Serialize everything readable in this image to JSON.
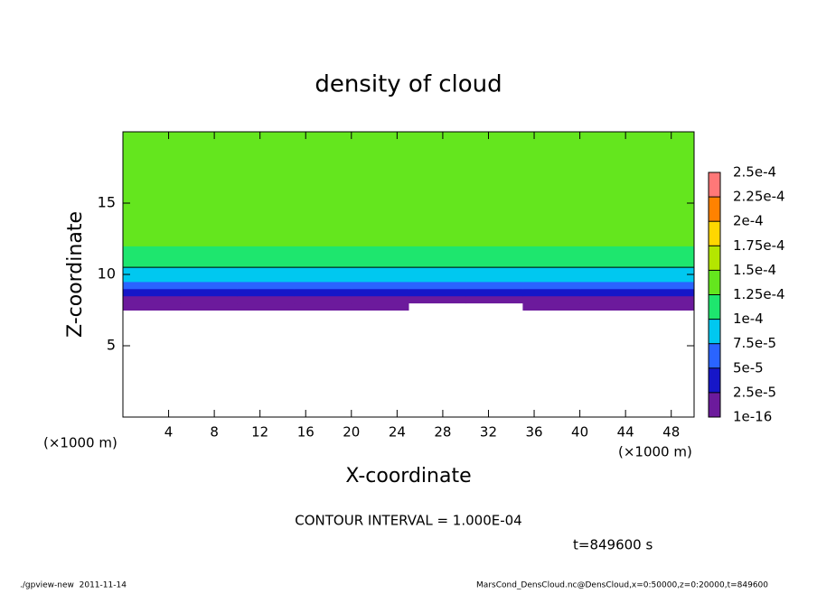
{
  "chart_data": {
    "type": "contour",
    "title": "density of cloud",
    "xlabel": "X-coordinate",
    "ylabel": "Z-coordinate",
    "x_unit": "(×1000 m)",
    "contour_interval_label": "CONTOUR INTERVAL = 1.000E-04",
    "contour_levels": [
      0.0001
    ],
    "contour_color": "#000000",
    "time_label": "t=849600 s",
    "footer_left": "./gpview-new  2011-11-14",
    "footer_right": "MarsCond_DensCloud.nc@DensCloud,x=0:50000,z=0:20000,t=849600",
    "xlim": [
      0,
      50
    ],
    "ylim": [
      0,
      20
    ],
    "xticks": [
      4,
      8,
      12,
      16,
      20,
      24,
      28,
      32,
      36,
      40,
      44,
      48
    ],
    "yticks": [
      5,
      10,
      15
    ],
    "x_edges": [
      0,
      5,
      10,
      15,
      20,
      25,
      30,
      35,
      40,
      45,
      50
    ],
    "z_edges": [
      7.5,
      8,
      8.5,
      9,
      9.5,
      10,
      10.5,
      12,
      20
    ],
    "values": [
      [
        1e-05,
        1e-05,
        1e-05,
        1e-05,
        1e-05,
        null,
        null,
        1e-05,
        1e-05,
        1e-05
      ],
      [
        2e-05,
        2e-05,
        2e-05,
        2e-05,
        2e-05,
        2e-05,
        2e-05,
        2e-05,
        2e-05,
        2e-05
      ],
      [
        3.5e-05,
        3.5e-05,
        3.5e-05,
        3.5e-05,
        3.5e-05,
        3.5e-05,
        3.5e-05,
        3.5e-05,
        3.5e-05,
        3.5e-05
      ],
      [
        6e-05,
        6e-05,
        6e-05,
        6e-05,
        6e-05,
        6e-05,
        6e-05,
        6e-05,
        6e-05,
        6e-05
      ],
      [
        8.5e-05,
        8.5e-05,
        8e-05,
        8.5e-05,
        8e-05,
        8.5e-05,
        8.5e-05,
        8.5e-05,
        8.5e-05,
        8.5e-05
      ],
      [
        9.5e-05,
        9.5e-05,
        9.5e-05,
        9.5e-05,
        9.5e-05,
        9.5e-05,
        9.5e-05,
        9.5e-05,
        9.5e-05,
        9.5e-05
      ],
      [
        0.00012,
        0.00012,
        0.000115,
        0.00012,
        0.00012,
        0.00012,
        0.00012,
        0.00012,
        0.00012,
        0.00012
      ],
      [
        0.000135,
        0.000135,
        0.000135,
        0.000135,
        0.00014,
        0.000135,
        0.000135,
        0.000135,
        0.000135,
        0.000135
      ]
    ],
    "levels": [
      {
        "value": 1e-16,
        "label": "1e-16"
      },
      {
        "value": 2.5e-05,
        "label": "2.5e-5"
      },
      {
        "value": 5e-05,
        "label": "5e-5"
      },
      {
        "value": 7.5e-05,
        "label": "7.5e-5"
      },
      {
        "value": 0.0001,
        "label": "1e-4"
      },
      {
        "value": 0.000125,
        "label": "1.25e-4"
      },
      {
        "value": 0.00015,
        "label": "1.5e-4"
      },
      {
        "value": 0.000175,
        "label": "1.75e-4"
      },
      {
        "value": 0.0002,
        "label": "2e-4"
      },
      {
        "value": 0.000225,
        "label": "2.25e-4"
      },
      {
        "value": 0.00025,
        "label": "2.5e-4"
      }
    ],
    "level_colors": [
      "#6c1a9c",
      "#1616c8",
      "#2a64ff",
      "#00c8f0",
      "#1ee66e",
      "#64e61e",
      "#b4e600",
      "#ffd700",
      "#ff8200",
      "#ff7878"
    ]
  }
}
